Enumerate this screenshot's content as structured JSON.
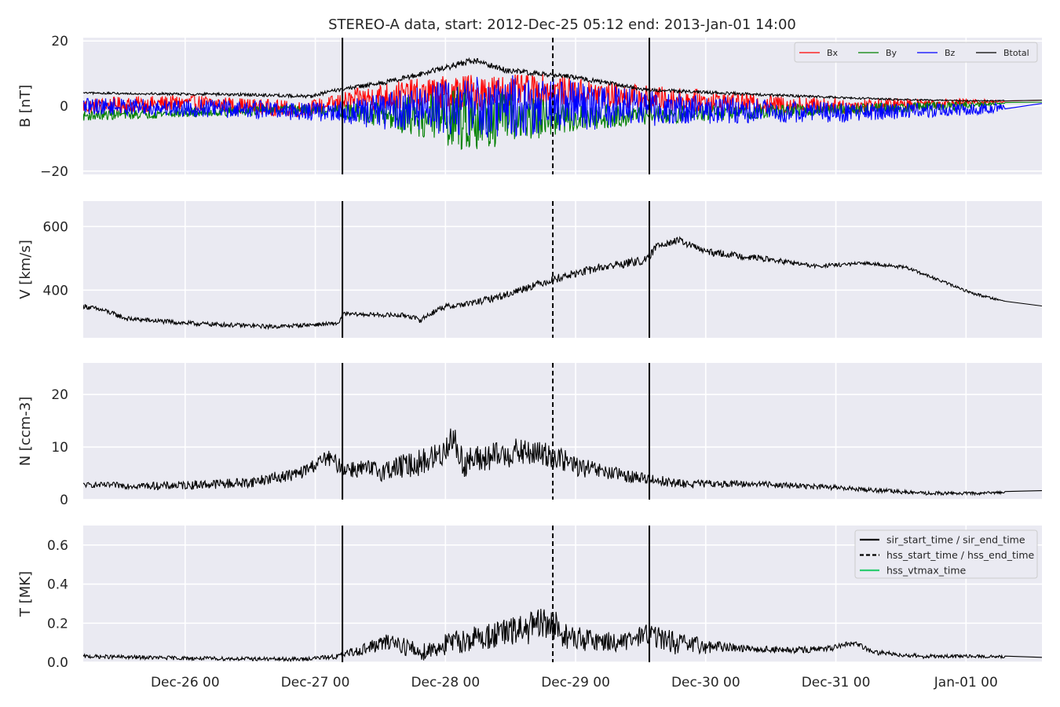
{
  "figure": {
    "title": "STEREO-A data, start: 2012-Dec-25 05:12  end: 2013-Jan-01 14:00"
  },
  "chart_data": {
    "type": "line",
    "x_range_hours": [
      0,
      176.8
    ],
    "x_unit": "hours since 2012-Dec-25 05:12",
    "x_ticks": [
      {
        "label": "Dec-26 00",
        "x": 18.8
      },
      {
        "label": "Dec-27 00",
        "x": 42.8
      },
      {
        "label": "Dec-28 00",
        "x": 66.8
      },
      {
        "label": "Dec-29 00",
        "x": 90.8
      },
      {
        "label": "Dec-30 00",
        "x": 114.8
      },
      {
        "label": "Dec-31 00",
        "x": 138.8
      },
      {
        "label": "Jan-01 00",
        "x": 162.8
      }
    ],
    "event_lines": [
      {
        "name": "sir_start_time",
        "x": 47.8,
        "style": "solid"
      },
      {
        "name": "hss_start_time",
        "x": 86.6,
        "style": "dashed"
      },
      {
        "name": "sir_end_time",
        "x": 104.4,
        "style": "solid"
      }
    ],
    "legend_events": [
      {
        "label": "sir_start_time / sir_end_time",
        "color": "#000000",
        "style": "solid"
      },
      {
        "label": "hss_start_time / hss_end_time",
        "color": "#000000",
        "style": "dashed"
      },
      {
        "label": "hss_vtmax_time",
        "color": "#2ecc71",
        "style": "solid"
      }
    ],
    "panels": [
      {
        "key": "B",
        "ylabel": "B [nT]",
        "ylim": [
          -21,
          21
        ],
        "yticks": [
          {
            "v": -20,
            "label": "−20"
          },
          {
            "v": 0,
            "label": "0"
          },
          {
            "v": 20,
            "label": "20"
          }
        ],
        "legend": "top-right",
        "series": [
          {
            "name": "Bx",
            "color": "#ff0000",
            "amp": [
              [
                0,
                2.5
              ],
              [
                45,
                2.5
              ],
              [
                52,
                4
              ],
              [
                62,
                5
              ],
              [
                70,
                6
              ],
              [
                80,
                5
              ],
              [
                100,
                4
              ],
              [
                125,
                3
              ],
              [
                150,
                2
              ],
              [
                165,
                1
              ],
              [
                170,
                0.2
              ]
            ],
            "base": [
              [
                0,
                0
              ],
              [
                20,
                1
              ],
              [
                40,
                -1
              ],
              [
                55,
                3
              ],
              [
                70,
                4
              ],
              [
                85,
                5
              ],
              [
                100,
                3
              ],
              [
                120,
                1
              ],
              [
                140,
                0
              ],
              [
                160,
                1
              ],
              [
                172,
                1.5
              ],
              [
                176.8,
                1.8
              ]
            ]
          },
          {
            "name": "By",
            "color": "#008000",
            "amp": [
              [
                0,
                1.5
              ],
              [
                45,
                1.5
              ],
              [
                55,
                4
              ],
              [
                70,
                10
              ],
              [
                75,
                9
              ],
              [
                85,
                6
              ],
              [
                100,
                3
              ],
              [
                130,
                2
              ],
              [
                160,
                1.5
              ],
              [
                170,
                0.3
              ]
            ],
            "base": [
              [
                0,
                -3
              ],
              [
                20,
                -2
              ],
              [
                40,
                -1
              ],
              [
                60,
                -3
              ],
              [
                75,
                -4
              ],
              [
                100,
                -3
              ],
              [
                120,
                -2
              ],
              [
                140,
                -1
              ],
              [
                160,
                0
              ],
              [
                172,
                1
              ],
              [
                176.8,
                1.2
              ]
            ]
          },
          {
            "name": "Bz",
            "color": "#0000ff",
            "amp": [
              [
                0,
                2.5
              ],
              [
                45,
                3
              ],
              [
                52,
                5
              ],
              [
                65,
                8
              ],
              [
                75,
                10
              ],
              [
                85,
                9
              ],
              [
                100,
                6
              ],
              [
                120,
                4
              ],
              [
                150,
                2.5
              ],
              [
                168,
                1.5
              ],
              [
                171,
                0.2
              ]
            ],
            "base": [
              [
                0,
                0
              ],
              [
                30,
                -1
              ],
              [
                50,
                -2
              ],
              [
                70,
                0
              ],
              [
                90,
                0
              ],
              [
                110,
                -1
              ],
              [
                140,
                -2
              ],
              [
                165,
                -1
              ],
              [
                176.8,
                0.8
              ]
            ]
          },
          {
            "name": "Btotal",
            "color": "#000000",
            "amp": [
              [
                0,
                0.3
              ],
              [
                50,
                0.6
              ],
              [
                70,
                1
              ],
              [
                100,
                0.6
              ],
              [
                176.8,
                0.1
              ]
            ],
            "base": [
              [
                0,
                4
              ],
              [
                30,
                3.5
              ],
              [
                42,
                3
              ],
              [
                47,
                5
              ],
              [
                55,
                7
              ],
              [
                65,
                11
              ],
              [
                72,
                14
              ],
              [
                78,
                11
              ],
              [
                90,
                9
              ],
              [
                104,
                5
              ],
              [
                125,
                3.5
              ],
              [
                150,
                2
              ],
              [
                165,
                1.6
              ],
              [
                176.8,
                1.8
              ]
            ]
          }
        ]
      },
      {
        "key": "V",
        "ylabel": "V [km/s]",
        "ylim": [
          250,
          680
        ],
        "yticks": [
          {
            "v": 400,
            "label": "400"
          },
          {
            "v": 600,
            "label": "600"
          }
        ],
        "series": [
          {
            "name": "V",
            "color": "#000000",
            "amp": [
              [
                0,
                8
              ],
              [
                50,
                6
              ],
              [
                80,
                12
              ],
              [
                100,
                14
              ],
              [
                110,
                12
              ],
              [
                140,
                6
              ],
              [
                168,
                4
              ],
              [
                170,
                0
              ]
            ],
            "base": [
              [
                0,
                350
              ],
              [
                4,
                335
              ],
              [
                8,
                310
              ],
              [
                20,
                295
              ],
              [
                35,
                285
              ],
              [
                47,
                295
              ],
              [
                48,
                325
              ],
              [
                60,
                320
              ],
              [
                62,
                305
              ],
              [
                66,
                345
              ],
              [
                72,
                360
              ],
              [
                78,
                385
              ],
              [
                82,
                410
              ],
              [
                88,
                440
              ],
              [
                95,
                470
              ],
              [
                104,
                495
              ],
              [
                106,
                545
              ],
              [
                110,
                555
              ],
              [
                115,
                520
              ],
              [
                125,
                500
              ],
              [
                135,
                475
              ],
              [
                145,
                485
              ],
              [
                152,
                470
              ],
              [
                158,
                430
              ],
              [
                164,
                390
              ],
              [
                170,
                365
              ],
              [
                176.8,
                350
              ]
            ]
          }
        ]
      },
      {
        "key": "N",
        "ylabel": "N [ccm-3]",
        "ylim": [
          0,
          26
        ],
        "yticks": [
          {
            "v": 0,
            "label": "0"
          },
          {
            "v": 10,
            "label": "10"
          },
          {
            "v": 20,
            "label": "20"
          }
        ],
        "series": [
          {
            "name": "N",
            "color": "#000000",
            "amp": [
              [
                0,
                0.5
              ],
              [
                40,
                1.2
              ],
              [
                55,
                2
              ],
              [
                68,
                3
              ],
              [
                85,
                2.5
              ],
              [
                100,
                1.2
              ],
              [
                120,
                0.6
              ],
              [
                176.8,
                0.2
              ]
            ],
            "base": [
              [
                0,
                2.8
              ],
              [
                15,
                2.6
              ],
              [
                30,
                3.2
              ],
              [
                40,
                5
              ],
              [
                45,
                8
              ],
              [
                48,
                6
              ],
              [
                55,
                5.5
              ],
              [
                62,
                7
              ],
              [
                66,
                8.5
              ],
              [
                68,
                12
              ],
              [
                70,
                7
              ],
              [
                75,
                8
              ],
              [
                80,
                9
              ],
              [
                86,
                8.5
              ],
              [
                92,
                6
              ],
              [
                100,
                4.5
              ],
              [
                104,
                4
              ],
              [
                110,
                3
              ],
              [
                125,
                3
              ],
              [
                140,
                2.2
              ],
              [
                155,
                1.2
              ],
              [
                165,
                1.2
              ],
              [
                176.8,
                1.7
              ]
            ]
          }
        ]
      },
      {
        "key": "T",
        "ylabel": "T [MK]",
        "ylim": [
          0,
          0.7
        ],
        "yticks": [
          {
            "v": 0,
            "label": "0.0"
          },
          {
            "v": 0.2,
            "label": "0.2"
          },
          {
            "v": 0.4,
            "label": "0.4"
          },
          {
            "v": 0.6,
            "label": "0.6"
          }
        ],
        "legend": "top-right",
        "series": [
          {
            "name": "T",
            "color": "#000000",
            "amp": [
              [
                0,
                0.01
              ],
              [
                45,
                0.01
              ],
              [
                55,
                0.04
              ],
              [
                75,
                0.07
              ],
              [
                86,
                0.09
              ],
              [
                95,
                0.05
              ],
              [
                110,
                0.06
              ],
              [
                120,
                0.02
              ],
              [
                176.8,
                0.005
              ]
            ],
            "base": [
              [
                0,
                0.03
              ],
              [
                20,
                0.02
              ],
              [
                40,
                0.015
              ],
              [
                47,
                0.03
              ],
              [
                52,
                0.07
              ],
              [
                57,
                0.11
              ],
              [
                62,
                0.05
              ],
              [
                68,
                0.1
              ],
              [
                72,
                0.12
              ],
              [
                80,
                0.16
              ],
              [
                86,
                0.2
              ],
              [
                90,
                0.12
              ],
              [
                100,
                0.1
              ],
              [
                104,
                0.15
              ],
              [
                110,
                0.09
              ],
              [
                130,
                0.06
              ],
              [
                138,
                0.07
              ],
              [
                142,
                0.1
              ],
              [
                146,
                0.05
              ],
              [
                155,
                0.03
              ],
              [
                165,
                0.03
              ],
              [
                176.8,
                0.025
              ]
            ]
          }
        ]
      }
    ]
  }
}
